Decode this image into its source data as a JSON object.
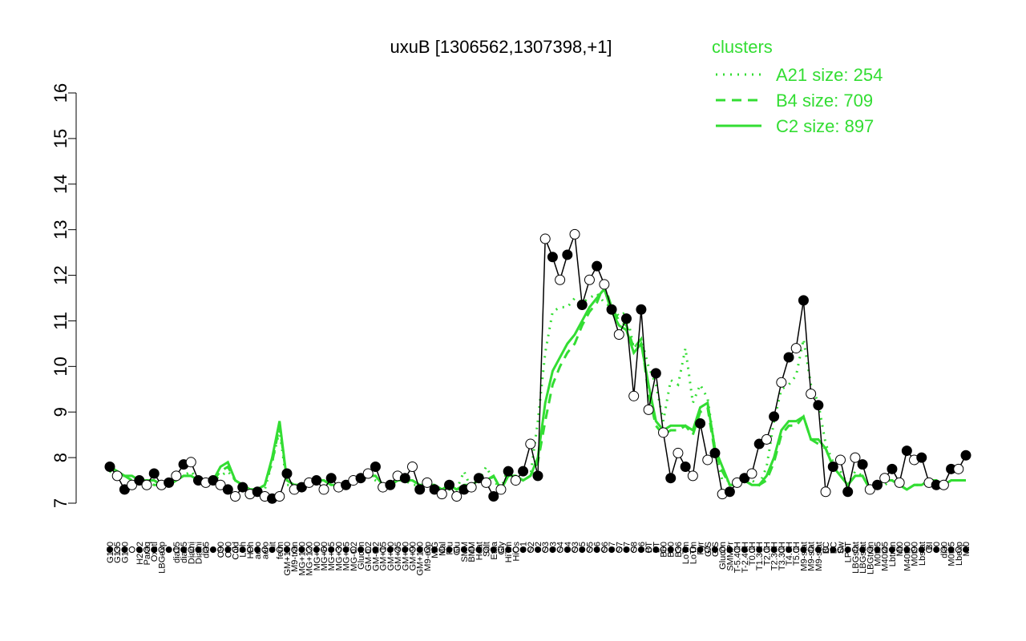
{
  "chart_data": {
    "type": "line",
    "title": "uxuB [1306562,1307398,+1]",
    "categories": [
      "G150",
      "G135",
      "G180",
      null,
      "H2O2",
      "Paraq",
      "Oxctl",
      "LBGexp",
      null,
      "dia15",
      "dia15",
      "Diami",
      "Diami",
      "dia5",
      null,
      "C90",
      "C30",
      "Cold",
      "LPh",
      "HPh",
      "aero",
      "aero",
      "nit",
      "ferm",
      "GM+150",
      "M9-tran",
      "MG+150",
      "MG+120",
      "MG+90",
      "MG+60",
      "MG+45",
      "MG+30",
      "MG+15",
      "MG-0.2",
      "Glucon",
      "GM-0.2",
      "GM-0.2",
      "GM+15",
      "GM+30",
      "GM+45",
      "GM+60",
      "GM+90",
      "GM+120",
      "M9-exp",
      "M/G",
      "Mal",
      "Fru",
      "Glu",
      "SMM",
      "BMM",
      "Heat",
      "Salt",
      "Etha",
      "Gly",
      "HiTm",
      "HiOs",
      "S1",
      "S2",
      "S2",
      "S3",
      "S3",
      "S4",
      "S4",
      "S3",
      "S5",
      "S5",
      "S6",
      "S6",
      "S7",
      "S7",
      "S7",
      "S8",
      "S6",
      "BT",
      "BT",
      "B60",
      "B60",
      "B36",
      "LoTm",
      "LoTm",
      "Pyr",
      "G/S",
      "G/S",
      "Glucon",
      "SMMPr",
      "T-5.40H",
      "T-2.40H",
      "T0.0H",
      "T1.30H",
      "T2.0H",
      "T2.30H",
      "T3.30H",
      "T4.0H",
      "T5.0H",
      "M9-stat",
      "M9-stat",
      "M9-stat",
      "BC",
      "BC",
      "Sw",
      "LPhT",
      "LBGstat",
      "LBGstat",
      "LBGtran",
      "M0t45",
      "M40t45",
      "Lbtran",
      "Mt0",
      "M40t90",
      "M0t90",
      "Lbstat",
      "BI",
      "S0",
      "dia0",
      "M0t45",
      "Lbexp",
      "Mt0"
    ],
    "values": [
      7.8,
      7.6,
      7.3,
      7.4,
      7.5,
      7.4,
      7.65,
      7.4,
      7.45,
      7.6,
      7.85,
      7.9,
      7.5,
      7.45,
      7.5,
      7.4,
      7.3,
      7.15,
      7.35,
      7.2,
      7.25,
      7.15,
      7.1,
      7.15,
      7.65,
      7.3,
      7.35,
      7.45,
      7.5,
      7.3,
      7.55,
      7.35,
      7.4,
      7.5,
      7.55,
      7.65,
      7.8,
      7.35,
      7.4,
      7.6,
      7.55,
      7.8,
      7.3,
      7.45,
      7.3,
      7.2,
      7.4,
      7.15,
      7.3,
      7.35,
      7.55,
      7.45,
      7.15,
      7.3,
      7.7,
      7.5,
      7.7,
      8.3,
      7.6,
      12.8,
      12.4,
      11.9,
      12.45,
      12.9,
      11.35,
      11.9,
      12.2,
      11.8,
      11.25,
      10.7,
      11.05,
      9.35,
      11.25,
      9.05,
      9.85,
      8.55,
      7.55,
      8.1,
      7.8,
      7.6,
      8.75,
      7.95,
      8.1,
      7.2,
      7.25,
      7.45,
      7.55,
      7.65,
      8.3,
      8.4,
      8.9,
      9.65,
      10.2,
      10.4,
      11.45,
      9.4,
      9.15,
      7.25,
      7.8,
      7.95,
      7.25,
      8.0,
      7.85,
      7.3,
      7.4,
      7.55,
      7.75,
      7.45,
      8.15,
      7.95,
      8.0,
      7.45,
      7.4,
      7.4,
      7.75,
      7.75,
      8.05
    ],
    "color": "#000000",
    "legend_title": "clusters",
    "series": [
      {
        "name": "A21 size: 254",
        "color": "#33dd33",
        "dash": "dotted",
        "values": [
          7.7,
          7.6,
          7.6,
          7.5,
          7.5,
          7.4,
          7.5,
          7.4,
          7.4,
          7.5,
          7.6,
          7.7,
          7.5,
          7.5,
          7.5,
          7.6,
          7.7,
          7.5,
          7.4,
          7.3,
          7.3,
          7.3,
          7.9,
          8.6,
          7.4,
          7.4,
          7.4,
          7.4,
          7.5,
          7.5,
          7.4,
          7.4,
          7.4,
          7.5,
          7.5,
          7.6,
          7.5,
          7.4,
          7.4,
          7.5,
          7.5,
          7.4,
          7.4,
          7.4,
          7.3,
          7.3,
          7.3,
          7.3,
          7.7,
          7.3,
          7.5,
          7.8,
          7.5,
          7.3,
          7.8,
          7.6,
          7.5,
          7.6,
          8.8,
          10.3,
          11.2,
          11.3,
          11.3,
          11.5,
          11.4,
          11.5,
          11.6,
          11.4,
          11.3,
          11.1,
          11.2,
          10.4,
          10.6,
          10.0,
          9.6,
          8.8,
          9.7,
          9.6,
          10.4,
          9.2,
          9.6,
          9.3,
          8.2,
          7.5,
          7.5,
          7.4,
          7.5,
          7.5,
          7.4,
          7.8,
          8.8,
          9.5,
          9.6,
          9.8,
          10.6,
          9.6,
          9.2,
          8.3,
          7.9,
          7.7,
          7.4,
          7.7,
          7.6,
          7.3,
          7.3,
          7.4,
          7.5,
          7.4,
          7.3,
          7.4,
          7.4,
          7.5,
          7.5,
          7.4,
          7.5,
          7.5,
          7.5
        ]
      },
      {
        "name": "B4 size: 709",
        "color": "#33dd33",
        "dash": "dashed",
        "values": [
          7.8,
          7.7,
          7.6,
          7.5,
          7.5,
          7.5,
          7.4,
          7.4,
          7.4,
          7.5,
          7.6,
          7.6,
          7.5,
          7.5,
          7.5,
          7.7,
          7.8,
          7.5,
          7.4,
          7.3,
          7.3,
          7.4,
          7.9,
          8.7,
          7.5,
          7.4,
          7.4,
          7.5,
          7.5,
          7.5,
          7.4,
          7.4,
          7.4,
          7.5,
          7.5,
          7.6,
          7.6,
          7.4,
          7.4,
          7.5,
          7.5,
          7.5,
          7.4,
          7.4,
          7.4,
          7.3,
          7.4,
          7.3,
          7.4,
          7.4,
          7.5,
          7.5,
          7.6,
          7.3,
          7.6,
          7.6,
          7.5,
          7.6,
          7.9,
          8.8,
          9.6,
          10.0,
          10.3,
          10.5,
          10.9,
          11.2,
          11.4,
          11.8,
          11.3,
          11.0,
          10.9,
          10.4,
          10.6,
          9.4,
          8.7,
          8.5,
          8.6,
          8.6,
          8.7,
          8.5,
          9.0,
          9.1,
          8.1,
          7.7,
          7.4,
          7.4,
          7.5,
          7.4,
          7.4,
          7.5,
          7.9,
          8.5,
          8.7,
          8.7,
          8.9,
          8.4,
          8.3,
          8.2,
          7.8,
          7.6,
          7.4,
          7.6,
          7.6,
          7.3,
          7.4,
          7.5,
          7.5,
          7.4,
          7.3,
          7.4,
          7.4,
          7.5,
          7.5,
          7.4,
          7.5,
          7.5,
          7.5
        ]
      },
      {
        "name": "C2 size: 897",
        "color": "#33dd33",
        "dash": "solid",
        "values": [
          7.8,
          7.7,
          7.6,
          7.6,
          7.5,
          7.5,
          7.5,
          7.4,
          7.4,
          7.5,
          7.6,
          7.6,
          7.5,
          7.5,
          7.5,
          7.8,
          7.9,
          7.5,
          7.4,
          7.3,
          7.3,
          7.4,
          8.0,
          8.8,
          7.5,
          7.4,
          7.4,
          7.5,
          7.5,
          7.5,
          7.4,
          7.4,
          7.4,
          7.5,
          7.5,
          7.6,
          7.6,
          7.4,
          7.4,
          7.5,
          7.5,
          7.5,
          7.4,
          7.4,
          7.4,
          7.3,
          7.4,
          7.3,
          7.4,
          7.4,
          7.5,
          7.5,
          7.6,
          7.3,
          7.6,
          7.6,
          7.5,
          7.6,
          8.0,
          9.2,
          9.9,
          10.2,
          10.5,
          10.7,
          11.0,
          11.3,
          11.5,
          11.7,
          11.2,
          10.9,
          10.8,
          10.3,
          10.5,
          9.6,
          8.8,
          8.6,
          8.7,
          8.7,
          8.7,
          8.6,
          9.1,
          9.2,
          8.2,
          7.8,
          7.4,
          7.4,
          7.5,
          7.4,
          7.4,
          7.6,
          8.0,
          8.6,
          8.8,
          8.8,
          8.9,
          8.4,
          8.4,
          8.2,
          7.8,
          7.6,
          7.4,
          7.6,
          7.6,
          7.3,
          7.4,
          7.5,
          7.5,
          7.4,
          7.3,
          7.4,
          7.4,
          7.5,
          7.5,
          7.4,
          7.5,
          7.5,
          7.5
        ]
      }
    ],
    "ylim": [
      7,
      16
    ],
    "yticks": [
      7,
      8,
      9,
      10,
      11,
      12,
      13,
      14,
      15,
      16
    ]
  }
}
